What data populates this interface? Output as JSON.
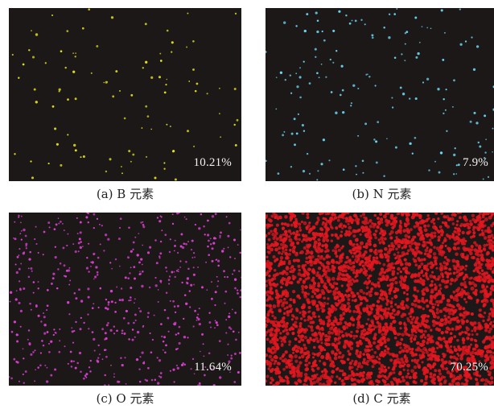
{
  "panels": [
    {
      "caption": "(a) B 元素",
      "percent": "10.21%",
      "dot_color": "#e4e21c",
      "dot_density": 0.0016
    },
    {
      "caption": "(b) N 元素",
      "percent": "7.9%",
      "dot_color": "#69d6f2",
      "dot_density": 0.0026
    },
    {
      "caption": "(c) O 元素",
      "percent": "11.64%",
      "dot_color": "#e03fd6",
      "dot_density": 0.0092
    },
    {
      "caption": "(d) C 元素",
      "percent": "70.25%",
      "dot_color": "#e3161f",
      "dot_density": 0.052
    }
  ]
}
